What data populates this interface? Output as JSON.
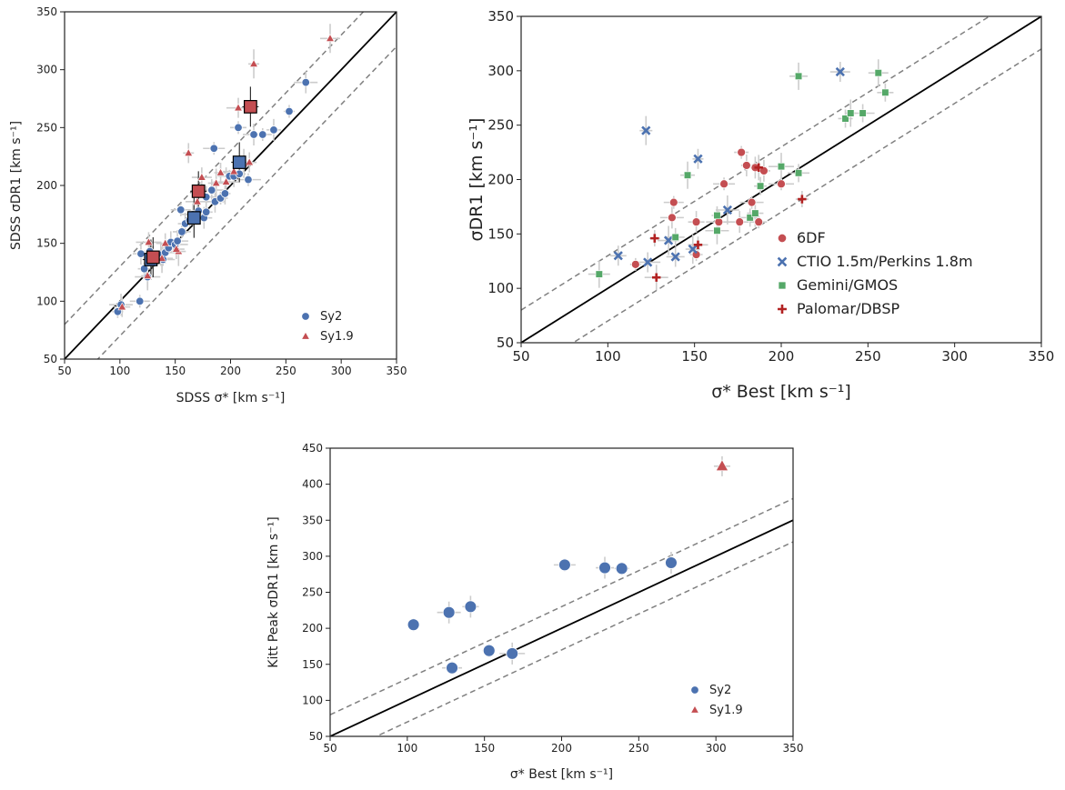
{
  "colors": {
    "sy2": "#4c72b0",
    "sy19": "#c44e52",
    "g6df": "#c44e52",
    "ctio": "#4c72b0",
    "gemini": "#55a868",
    "palomar": "#b22222",
    "errbar": "#cccccc",
    "identity": "#000000",
    "dashed": "#808080"
  },
  "chart_data": [
    {
      "type": "scatter",
      "xlabel": "SDSS σ* [km s⁻¹]",
      "ylabel": "SDSS σDR1 [km s⁻¹]",
      "xlim": [
        50,
        350
      ],
      "ylim": [
        50,
        350
      ],
      "ticks": [
        "50",
        "100",
        "150",
        "200",
        "250",
        "300",
        "350"
      ],
      "legend": {
        "position": "bottom-right",
        "entries": [
          "Sy2",
          "Sy1.9"
        ]
      },
      "series": [
        {
          "name": "Sy2",
          "marker": "circle",
          "points": [
            [
              98,
              91
            ],
            [
              101,
              97
            ],
            [
              118,
              100
            ],
            [
              119,
              141
            ],
            [
              122,
              128
            ],
            [
              125,
              121
            ],
            [
              127,
              143
            ],
            [
              130,
              138
            ],
            [
              133,
              136
            ],
            [
              137,
              140
            ],
            [
              139,
              136
            ],
            [
              141,
              142
            ],
            [
              144,
              146
            ],
            [
              146,
              151
            ],
            [
              150,
              149
            ],
            [
              152,
              152
            ],
            [
              156,
              160
            ],
            [
              159,
              167
            ],
            [
              163,
              170
            ],
            [
              166,
              175
            ],
            [
              171,
              178
            ],
            [
              176,
              172
            ],
            [
              178,
              177
            ],
            [
              183,
              196
            ],
            [
              185,
              232
            ],
            [
              186,
              186
            ],
            [
              191,
              189
            ],
            [
              195,
              193
            ],
            [
              199,
              208
            ],
            [
              203,
              208
            ],
            [
              207,
              250
            ],
            [
              212,
              218
            ],
            [
              216,
              205
            ],
            [
              221,
              244
            ],
            [
              229,
              244
            ],
            [
              239,
              248
            ],
            [
              253,
              264
            ],
            [
              268,
              289
            ],
            [
              155,
              179
            ],
            [
              178,
              190
            ],
            [
              208,
              210
            ]
          ]
        },
        {
          "name": "Sy1.9",
          "marker": "triangle",
          "points": [
            [
              102,
              95
            ],
            [
              125,
              122
            ],
            [
              126,
              151
            ],
            [
              138,
              137
            ],
            [
              141,
              150
            ],
            [
              153,
              143
            ],
            [
              162,
              228
            ],
            [
              170,
              186
            ],
            [
              174,
              207
            ],
            [
              187,
              202
            ],
            [
              191,
              211
            ],
            [
              196,
              203
            ],
            [
              203,
              212
            ],
            [
              212,
              219
            ],
            [
              217,
              220
            ],
            [
              221,
              305
            ],
            [
              207,
              267
            ],
            [
              290,
              327
            ],
            [
              151,
              145
            ]
          ]
        },
        {
          "name": "",
          "marker": "square",
          "group": "Sy2",
          "points": [
            [
              128,
              136
            ],
            [
              167,
              172
            ],
            [
              208,
              220
            ]
          ]
        },
        {
          "name": "",
          "marker": "square",
          "group": "Sy1.9",
          "points": [
            [
              130,
              138
            ],
            [
              171,
              195
            ],
            [
              218,
              268
            ]
          ]
        }
      ]
    },
    {
      "type": "scatter",
      "xlabel": "σ* Best [km s⁻¹]",
      "ylabel": "σDR1 [km s⁻¹]",
      "xlim": [
        50,
        350
      ],
      "ylim": [
        50,
        350
      ],
      "ticks": [
        "50",
        "100",
        "150",
        "200",
        "250",
        "300",
        "350"
      ],
      "legend": {
        "position": "bottom-right",
        "entries": [
          "6DF",
          "CTIO 1.5m/Perkins 1.8m",
          "Gemini/GMOS",
          "Palomar/DBSP"
        ]
      },
      "series": [
        {
          "name": "6DF",
          "marker": "circle",
          "points": [
            [
              116,
              122
            ],
            [
              137,
              165
            ],
            [
              138,
              179
            ],
            [
              151,
              161
            ],
            [
              151,
              131
            ],
            [
              164,
              161
            ],
            [
              167,
              196
            ],
            [
              176,
              161
            ],
            [
              177,
              225
            ],
            [
              180,
              213
            ],
            [
              183,
              179
            ],
            [
              185,
              211
            ],
            [
              187,
              161
            ],
            [
              190,
              208
            ],
            [
              200,
              196
            ]
          ]
        },
        {
          "name": "CTIO 1.5m/Perkins 1.8m",
          "marker": "x",
          "points": [
            [
              106,
              130
            ],
            [
              122,
              245
            ],
            [
              123,
              124
            ],
            [
              135,
              144
            ],
            [
              139,
              129
            ],
            [
              149,
              136
            ],
            [
              152,
              219
            ],
            [
              169,
              172
            ],
            [
              234,
              299
            ]
          ]
        },
        {
          "name": "Gemini/GMOS",
          "marker": "square",
          "points": [
            [
              95,
              113
            ],
            [
              139,
              147
            ],
            [
              146,
              204
            ],
            [
              163,
              167
            ],
            [
              163,
              153
            ],
            [
              182,
              165
            ],
            [
              185,
              169
            ],
            [
              188,
              194
            ],
            [
              200,
              212
            ],
            [
              210,
              206
            ],
            [
              210,
              295
            ],
            [
              237,
              256
            ],
            [
              240,
              261
            ],
            [
              247,
              261
            ],
            [
              256,
              298
            ],
            [
              260,
              280
            ]
          ]
        },
        {
          "name": "Palomar/DBSP",
          "marker": "plus",
          "points": [
            [
              127,
              146
            ],
            [
              128,
              110
            ],
            [
              152,
              140
            ],
            [
              187,
              211
            ],
            [
              212,
              182
            ]
          ]
        }
      ]
    },
    {
      "type": "scatter",
      "xlabel": "σ* Best [km s⁻¹]",
      "ylabel": "Kitt Peak σDR1 [km s⁻¹]",
      "xlim": [
        50,
        350
      ],
      "ylim": [
        50,
        450
      ],
      "xticks": [
        "50",
        "100",
        "150",
        "200",
        "250",
        "300",
        "350"
      ],
      "yticks": [
        "50",
        "100",
        "150",
        "200",
        "250",
        "300",
        "350",
        "400",
        "450"
      ],
      "legend": {
        "position": "bottom-right",
        "entries": [
          "Sy2",
          "Sy1.9"
        ]
      },
      "series": [
        {
          "name": "Sy2",
          "marker": "circle",
          "points": [
            [
              104,
              205
            ],
            [
              127,
              222
            ],
            [
              129,
              145
            ],
            [
              141,
              230
            ],
            [
              153,
              169
            ],
            [
              168,
              165
            ],
            [
              202,
              288
            ],
            [
              228,
              284
            ],
            [
              239,
              283
            ],
            [
              271,
              291
            ]
          ]
        },
        {
          "name": "Sy1.9",
          "marker": "triangle",
          "points": [
            [
              304,
              425
            ]
          ]
        }
      ]
    }
  ]
}
